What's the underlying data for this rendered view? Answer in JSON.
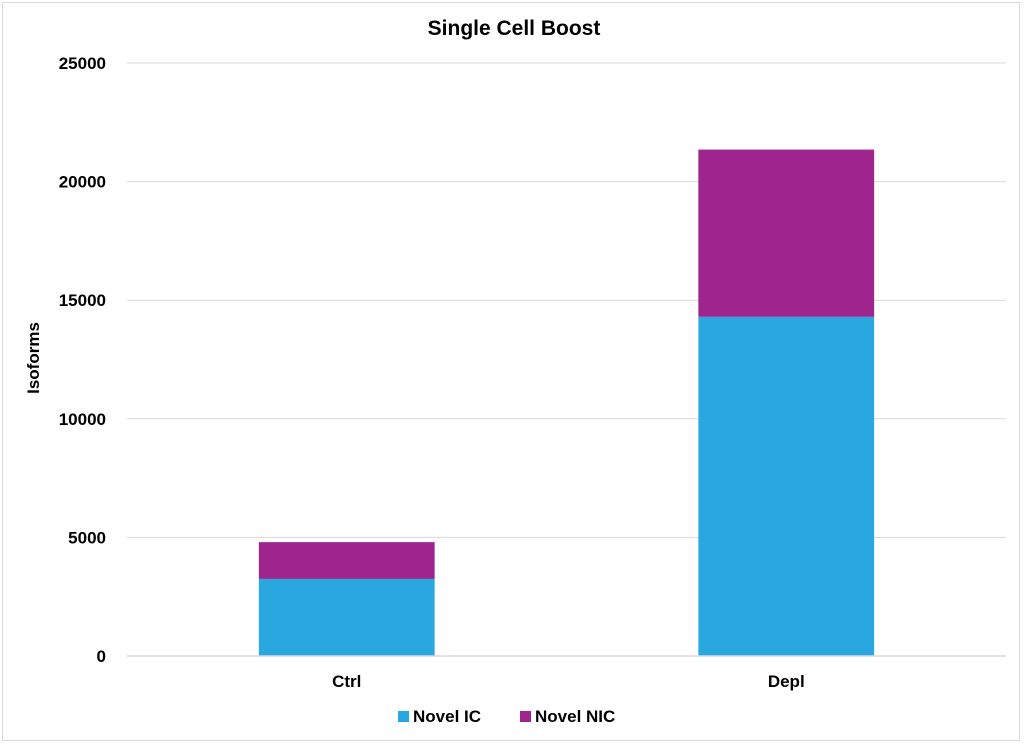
{
  "chart_data": {
    "type": "bar",
    "stacked": true,
    "title": "Single Cell Boost",
    "xlabel": "",
    "ylabel": "Isoforms",
    "categories": [
      "Ctrl",
      "Depl"
    ],
    "ylim": [
      0,
      25000
    ],
    "yticks": [
      0,
      5000,
      10000,
      15000,
      20000,
      25000
    ],
    "grid": true,
    "legend_position": "bottom",
    "series": [
      {
        "name": "Novel IC",
        "color": "#29a8df",
        "values": [
          3250,
          14300
        ]
      },
      {
        "name": "Novel NIC",
        "color": "#9e258d",
        "values": [
          1550,
          7050
        ]
      }
    ]
  }
}
